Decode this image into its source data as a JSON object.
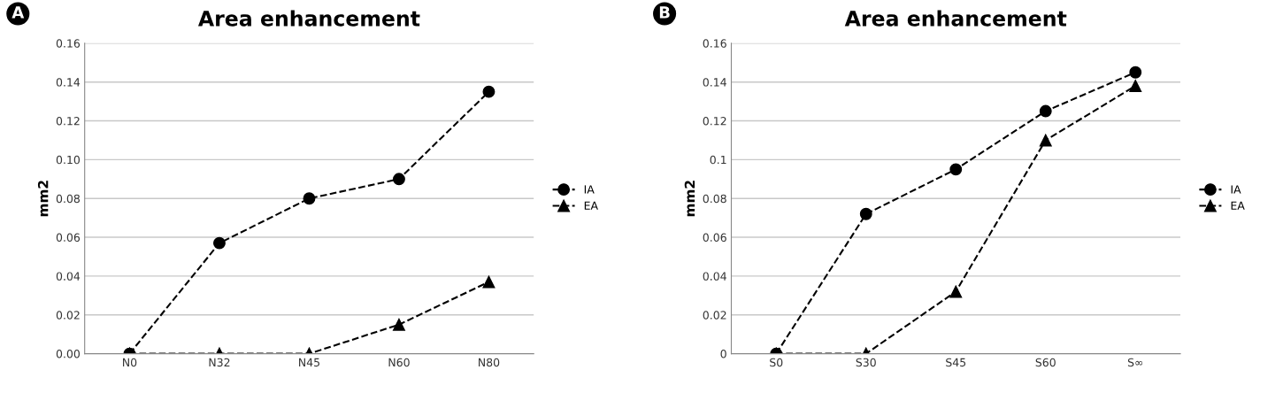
{
  "chart_data": [
    {
      "type": "line",
      "title": "Area enhancement",
      "ylabel": "mm2",
      "annotations": [
        "A"
      ],
      "categories": [
        "N0",
        "N32",
        "N45",
        "N60",
        "N80"
      ],
      "series": [
        {
          "name": "IA",
          "color": "#000000",
          "marker": "circle",
          "values": [
            0,
            0.057,
            0.08,
            0.09,
            0.135
          ]
        },
        {
          "name": "EA",
          "color": "#000000",
          "marker": "triangle",
          "values": [
            0,
            0,
            0,
            0.015,
            0.037
          ]
        }
      ],
      "ylim": [
        0,
        0.16
      ],
      "yticks": [
        {
          "value": 0,
          "label": "0.00"
        },
        {
          "value": 0.02,
          "label": "0.02"
        },
        {
          "value": 0.04,
          "label": "0.04"
        },
        {
          "value": 0.06,
          "label": "0.06"
        },
        {
          "value": 0.08,
          "label": "0.08"
        },
        {
          "value": 0.1,
          "label": "0.10"
        },
        {
          "value": 0.12,
          "label": "0.12"
        },
        {
          "value": 0.14,
          "label": "0.14"
        },
        {
          "value": 0.16,
          "label": "0.16"
        }
      ],
      "grid": "y",
      "legend": "right",
      "line_style": "dashed"
    },
    {
      "type": "line",
      "title": "Area enhancement",
      "ylabel": "mm2",
      "annotations": [
        "B"
      ],
      "categories": [
        "S0",
        "S30",
        "S45",
        "S60",
        "S∞"
      ],
      "series": [
        {
          "name": "IA",
          "color": "#000000",
          "marker": "circle",
          "values": [
            0,
            0.072,
            0.095,
            0.125,
            0.145
          ]
        },
        {
          "name": "EA",
          "color": "#000000",
          "marker": "triangle",
          "values": [
            0,
            0,
            0.032,
            0.11,
            0.138
          ]
        }
      ],
      "ylim": [
        0,
        0.16
      ],
      "yticks": [
        0,
        0.02,
        0.04,
        0.06,
        0.08,
        0.1,
        0.12,
        0.14,
        0.16
      ],
      "grid": "y",
      "legend": "right",
      "line_style": "dashed"
    }
  ]
}
